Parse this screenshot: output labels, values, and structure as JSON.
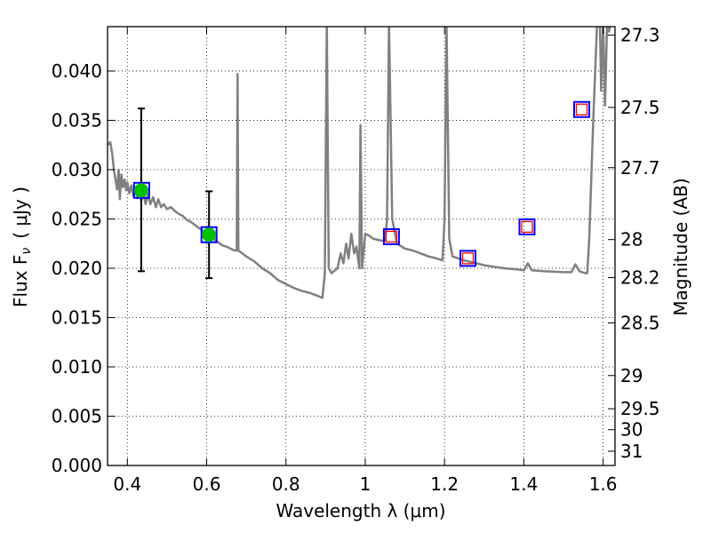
{
  "chart_data": {
    "type": "line",
    "xlabel": "Wavelength  λ (μm)",
    "ylabel": "Flux  F",
    "ylabel_sub": "ν",
    "ylabel_unit": "( μJy )",
    "ylabel_right": "Magnitude (AB)",
    "xlim": [
      0.35,
      1.63
    ],
    "ylim": [
      0.0,
      0.0445
    ],
    "grid": true,
    "x_ticks": [
      {
        "v": 0.4,
        "label": "0.4"
      },
      {
        "v": 0.6,
        "label": "0.6"
      },
      {
        "v": 0.8,
        "label": "0.8"
      },
      {
        "v": 1.0,
        "label": "1"
      },
      {
        "v": 1.2,
        "label": "1.2"
      },
      {
        "v": 1.4,
        "label": "1.4"
      },
      {
        "v": 1.6,
        "label": "1.6"
      }
    ],
    "y_ticks": [
      {
        "v": 0.0,
        "label": "0.000"
      },
      {
        "v": 0.005,
        "label": "0.005"
      },
      {
        "v": 0.01,
        "label": "0.010"
      },
      {
        "v": 0.015,
        "label": "0.015"
      },
      {
        "v": 0.02,
        "label": "0.020"
      },
      {
        "v": 0.025,
        "label": "0.025"
      },
      {
        "v": 0.03,
        "label": "0.030"
      },
      {
        "v": 0.035,
        "label": "0.035"
      },
      {
        "v": 0.04,
        "label": "0.040"
      }
    ],
    "mag_ticks": [
      {
        "v": 27.3,
        "label": "27.3"
      },
      {
        "v": 27.5,
        "label": "27.5"
      },
      {
        "v": 27.7,
        "label": "27.7"
      },
      {
        "v": 28,
        "label": "28"
      },
      {
        "v": 28.2,
        "label": "28.2"
      },
      {
        "v": 28.5,
        "label": "28.5"
      },
      {
        "v": 29,
        "label": "29"
      },
      {
        "v": 29.5,
        "label": "29.5"
      },
      {
        "v": 30,
        "label": "30"
      },
      {
        "v": 31,
        "label": "31"
      }
    ],
    "sed_model": {
      "color": "#808080",
      "points": [
        [
          0.35,
          0.0325
        ],
        [
          0.357,
          0.0328
        ],
        [
          0.362,
          0.0315
        ],
        [
          0.366,
          0.03
        ],
        [
          0.37,
          0.029
        ],
        [
          0.374,
          0.028
        ],
        [
          0.378,
          0.03
        ],
        [
          0.381,
          0.027
        ],
        [
          0.385,
          0.0295
        ],
        [
          0.389,
          0.0282
        ],
        [
          0.393,
          0.029
        ],
        [
          0.397,
          0.0279
        ],
        [
          0.4,
          0.0287
        ],
        [
          0.405,
          0.0276
        ],
        [
          0.41,
          0.0284
        ],
        [
          0.415,
          0.0273
        ],
        [
          0.42,
          0.0281
        ],
        [
          0.425,
          0.0271
        ],
        [
          0.43,
          0.0282
        ],
        [
          0.435,
          0.0268
        ],
        [
          0.44,
          0.0278
        ],
        [
          0.446,
          0.0265
        ],
        [
          0.452,
          0.0275
        ],
        [
          0.458,
          0.0265
        ],
        [
          0.465,
          0.0272
        ],
        [
          0.472,
          0.0262
        ],
        [
          0.478,
          0.027
        ],
        [
          0.485,
          0.0262
        ],
        [
          0.492,
          0.0265
        ],
        [
          0.5,
          0.026
        ],
        [
          0.51,
          0.0262
        ],
        [
          0.52,
          0.0258
        ],
        [
          0.53,
          0.0255
        ],
        [
          0.54,
          0.0253
        ],
        [
          0.55,
          0.0249
        ],
        [
          0.56,
          0.0247
        ],
        [
          0.57,
          0.0244
        ],
        [
          0.58,
          0.0241
        ],
        [
          0.59,
          0.0238
        ],
        [
          0.6,
          0.0235
        ],
        [
          0.61,
          0.0232
        ],
        [
          0.62,
          0.0229
        ],
        [
          0.63,
          0.0226
        ],
        [
          0.64,
          0.0223
        ],
        [
          0.65,
          0.0222
        ],
        [
          0.66,
          0.022
        ],
        [
          0.67,
          0.0218
        ],
        [
          0.676,
          0.0218
        ],
        [
          0.678,
          0.0397
        ],
        [
          0.68,
          0.0218
        ],
        [
          0.69,
          0.0215
        ],
        [
          0.7,
          0.0212
        ],
        [
          0.72,
          0.0207
        ],
        [
          0.74,
          0.02
        ],
        [
          0.76,
          0.0195
        ],
        [
          0.78,
          0.0188
        ],
        [
          0.8,
          0.0184
        ],
        [
          0.82,
          0.018
        ],
        [
          0.84,
          0.0177
        ],
        [
          0.86,
          0.0175
        ],
        [
          0.88,
          0.0172
        ],
        [
          0.892,
          0.017
        ],
        [
          0.898,
          0.0195
        ],
        [
          0.903,
          0.045
        ],
        [
          0.908,
          0.02
        ],
        [
          0.915,
          0.0195
        ],
        [
          0.93,
          0.02
        ],
        [
          0.938,
          0.0215
        ],
        [
          0.945,
          0.0205
        ],
        [
          0.952,
          0.0225
        ],
        [
          0.958,
          0.021
        ],
        [
          0.965,
          0.0235
        ],
        [
          0.972,
          0.0215
        ],
        [
          0.978,
          0.0222
        ],
        [
          0.985,
          0.02
        ],
        [
          0.988,
          0.0345
        ],
        [
          0.992,
          0.02
        ],
        [
          1.0,
          0.0235
        ],
        [
          1.01,
          0.0233
        ],
        [
          1.02,
          0.023
        ],
        [
          1.04,
          0.0228
        ],
        [
          1.05,
          0.0228
        ],
        [
          1.055,
          0.025
        ],
        [
          1.06,
          0.045
        ],
        [
          1.068,
          0.025
        ],
        [
          1.08,
          0.0225
        ],
        [
          1.1,
          0.022
        ],
        [
          1.12,
          0.0218
        ],
        [
          1.14,
          0.0215
        ],
        [
          1.16,
          0.0212
        ],
        [
          1.18,
          0.021
        ],
        [
          1.195,
          0.0208
        ],
        [
          1.2,
          0.025
        ],
        [
          1.205,
          0.045
        ],
        [
          1.212,
          0.023
        ],
        [
          1.22,
          0.0212
        ],
        [
          1.25,
          0.0208
        ],
        [
          1.28,
          0.0205
        ],
        [
          1.3,
          0.0203
        ],
        [
          1.35,
          0.02
        ],
        [
          1.38,
          0.0199
        ],
        [
          1.4,
          0.0198
        ],
        [
          1.41,
          0.0205
        ],
        [
          1.42,
          0.0198
        ],
        [
          1.45,
          0.0197
        ],
        [
          1.5,
          0.0196
        ],
        [
          1.52,
          0.0196
        ],
        [
          1.53,
          0.0204
        ],
        [
          1.54,
          0.0197
        ],
        [
          1.555,
          0.0195
        ],
        [
          1.56,
          0.0195
        ],
        [
          1.565,
          0.023
        ],
        [
          1.575,
          0.035
        ],
        [
          1.585,
          0.045
        ],
        [
          1.592,
          0.045
        ],
        [
          1.595,
          0.038
        ],
        [
          1.6,
          0.045
        ],
        [
          1.605,
          0.0365
        ],
        [
          1.61,
          0.045
        ],
        [
          1.615,
          0.044
        ],
        [
          1.62,
          0.045
        ]
      ]
    },
    "observed": [
      {
        "x": 0.435,
        "y": 0.0279,
        "err_low": 0.0197,
        "err_high": 0.0362
      },
      {
        "x": 0.606,
        "y": 0.0234,
        "err_low": 0.019,
        "err_high": 0.0278
      }
    ],
    "model_photometry": [
      {
        "x": 0.436,
        "y": 0.0279
      },
      {
        "x": 0.606,
        "y": 0.0234
      },
      {
        "x": 1.066,
        "y": 0.0232
      },
      {
        "x": 1.259,
        "y": 0.021
      },
      {
        "x": 1.408,
        "y": 0.0242
      },
      {
        "x": 1.546,
        "y": 0.0361
      }
    ],
    "upper_limits": [
      {
        "x": 1.066,
        "y": 0.0232
      },
      {
        "x": 1.259,
        "y": 0.021
      },
      {
        "x": 1.408,
        "y": 0.0242
      },
      {
        "x": 1.546,
        "y": 0.0361
      }
    ],
    "colors": {
      "model_box": "#0000ff",
      "limit_box": "#ff0000",
      "observed": "#00c000",
      "grid": "#000000"
    }
  }
}
